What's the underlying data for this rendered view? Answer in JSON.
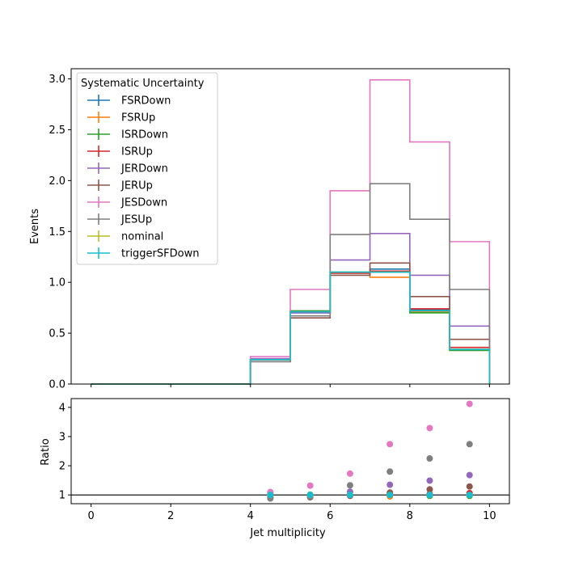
{
  "chart_data": [
    {
      "type": "line",
      "drawstyle": "step",
      "x_edges": [
        0,
        1,
        2,
        3,
        4,
        5,
        6,
        7,
        8,
        9,
        10
      ],
      "ylabel": "Events",
      "xlim": [
        -0.5,
        10.5
      ],
      "ylim": [
        0,
        3.1
      ],
      "yticks": [
        "0.0",
        "0.5",
        "1.0",
        "1.5",
        "2.0",
        "2.5",
        "3.0"
      ],
      "legend": {
        "title": "Systematic Uncertainty",
        "placement": "top-left"
      },
      "series": [
        {
          "name": "FSRDown",
          "color": "#1f77b4",
          "values": [
            0,
            0,
            0,
            0,
            0.24,
            0.7,
            1.09,
            1.13,
            0.73,
            0.34
          ]
        },
        {
          "name": "FSRUp",
          "color": "#ff7f0e",
          "values": [
            0,
            0,
            0,
            0,
            0.24,
            0.71,
            1.09,
            1.05,
            0.71,
            0.34
          ]
        },
        {
          "name": "ISRDown",
          "color": "#2ca02c",
          "values": [
            0,
            0,
            0,
            0,
            0.24,
            0.72,
            1.1,
            1.1,
            0.7,
            0.33
          ]
        },
        {
          "name": "ISRUp",
          "color": "#d62728",
          "values": [
            0,
            0,
            0,
            0,
            0.24,
            0.71,
            1.09,
            1.11,
            0.74,
            0.36
          ]
        },
        {
          "name": "JERDown",
          "color": "#9467bd",
          "values": [
            0,
            0,
            0,
            0,
            0.25,
            0.7,
            1.22,
            1.48,
            1.07,
            0.57
          ]
        },
        {
          "name": "JERUp",
          "color": "#8c564b",
          "values": [
            0,
            0,
            0,
            0,
            0.22,
            0.65,
            1.07,
            1.19,
            0.86,
            0.44
          ]
        },
        {
          "name": "JESDown",
          "color": "#e377c2",
          "values": [
            0,
            0,
            0,
            0,
            0.27,
            0.93,
            1.9,
            2.99,
            2.38,
            1.4
          ]
        },
        {
          "name": "JESUp",
          "color": "#7f7f7f",
          "values": [
            0,
            0,
            0,
            0,
            0.22,
            0.67,
            1.47,
            1.97,
            1.62,
            0.93
          ]
        },
        {
          "name": "nominal",
          "color": "#bcbd22",
          "values": [
            0,
            0,
            0,
            0,
            0.24,
            0.71,
            1.1,
            1.1,
            0.72,
            0.34
          ]
        },
        {
          "name": "triggerSFDown",
          "color": "#17becf",
          "values": [
            0,
            0,
            0,
            0,
            0.24,
            0.71,
            1.1,
            1.1,
            0.72,
            0.34
          ]
        }
      ]
    },
    {
      "type": "scatter",
      "xlabel": "Jet multiplicity",
      "ylabel": "Ratio",
      "xlim": [
        -0.5,
        10.5
      ],
      "ylim": [
        0.7,
        4.3
      ],
      "xticks": [
        "0",
        "2",
        "4",
        "6",
        "8",
        "10"
      ],
      "yticks": [
        "1",
        "2",
        "3",
        "4"
      ],
      "reference_line": 1,
      "x": [
        4.5,
        5.5,
        6.5,
        7.5,
        8.5,
        9.5
      ],
      "series": [
        {
          "name": "FSRDown",
          "color": "#1f77b4",
          "values": [
            1.0,
            0.99,
            0.99,
            1.03,
            1.01,
            1.0
          ]
        },
        {
          "name": "FSRUp",
          "color": "#ff7f0e",
          "values": [
            1.0,
            1.0,
            0.99,
            0.95,
            0.99,
            1.0
          ]
        },
        {
          "name": "ISRDown",
          "color": "#2ca02c",
          "values": [
            1.0,
            1.01,
            1.0,
            1.0,
            0.97,
            0.97
          ]
        },
        {
          "name": "ISRUp",
          "color": "#d62728",
          "values": [
            1.0,
            1.0,
            0.99,
            1.01,
            1.03,
            1.06
          ]
        },
        {
          "name": "JERDown",
          "color": "#9467bd",
          "values": [
            1.04,
            0.99,
            1.11,
            1.35,
            1.49,
            1.68
          ]
        },
        {
          "name": "JERUp",
          "color": "#8c564b",
          "values": [
            0.92,
            0.92,
            0.97,
            1.08,
            1.19,
            1.29
          ]
        },
        {
          "name": "JESDown",
          "color": "#e377c2",
          "values": [
            1.1,
            1.32,
            1.73,
            2.74,
            3.29,
            4.12
          ]
        },
        {
          "name": "JESUp",
          "color": "#7f7f7f",
          "values": [
            0.88,
            0.94,
            1.33,
            1.8,
            2.25,
            2.74
          ]
        },
        {
          "name": "nominal",
          "color": "#bcbd22",
          "values": [
            1.0,
            1.0,
            1.0,
            1.0,
            1.0,
            1.0
          ]
        },
        {
          "name": "triggerSFDown",
          "color": "#17becf",
          "values": [
            1.0,
            1.0,
            1.0,
            1.0,
            1.0,
            1.0
          ]
        }
      ]
    }
  ]
}
